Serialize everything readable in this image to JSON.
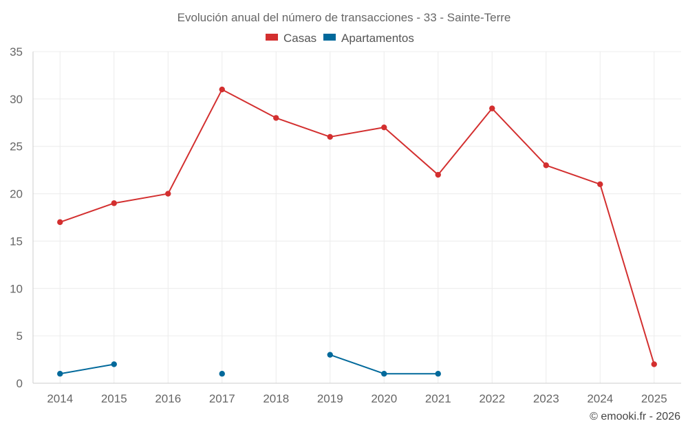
{
  "chart_data": {
    "type": "line",
    "title": "Evolución anual del número de transacciones - 33 - Sainte-Terre",
    "categories": [
      "2014",
      "2015",
      "2016",
      "2017",
      "2018",
      "2019",
      "2020",
      "2021",
      "2022",
      "2023",
      "2024",
      "2025"
    ],
    "ylim": [
      0,
      35
    ],
    "yticks": [
      0,
      5,
      10,
      15,
      20,
      25,
      30,
      35
    ],
    "grid": true,
    "legend_position": "top-center",
    "series": [
      {
        "name": "Casas",
        "color": "#d32f2f",
        "values": [
          17,
          19,
          20,
          31,
          28,
          26,
          27,
          22,
          29,
          23,
          21,
          2
        ]
      },
      {
        "name": "Apartamentos",
        "color": "#01699b",
        "values": [
          1,
          2,
          null,
          1,
          null,
          3,
          1,
          1,
          null,
          null,
          null,
          null
        ]
      }
    ]
  },
  "credit": "© emooki.fr - 2026"
}
